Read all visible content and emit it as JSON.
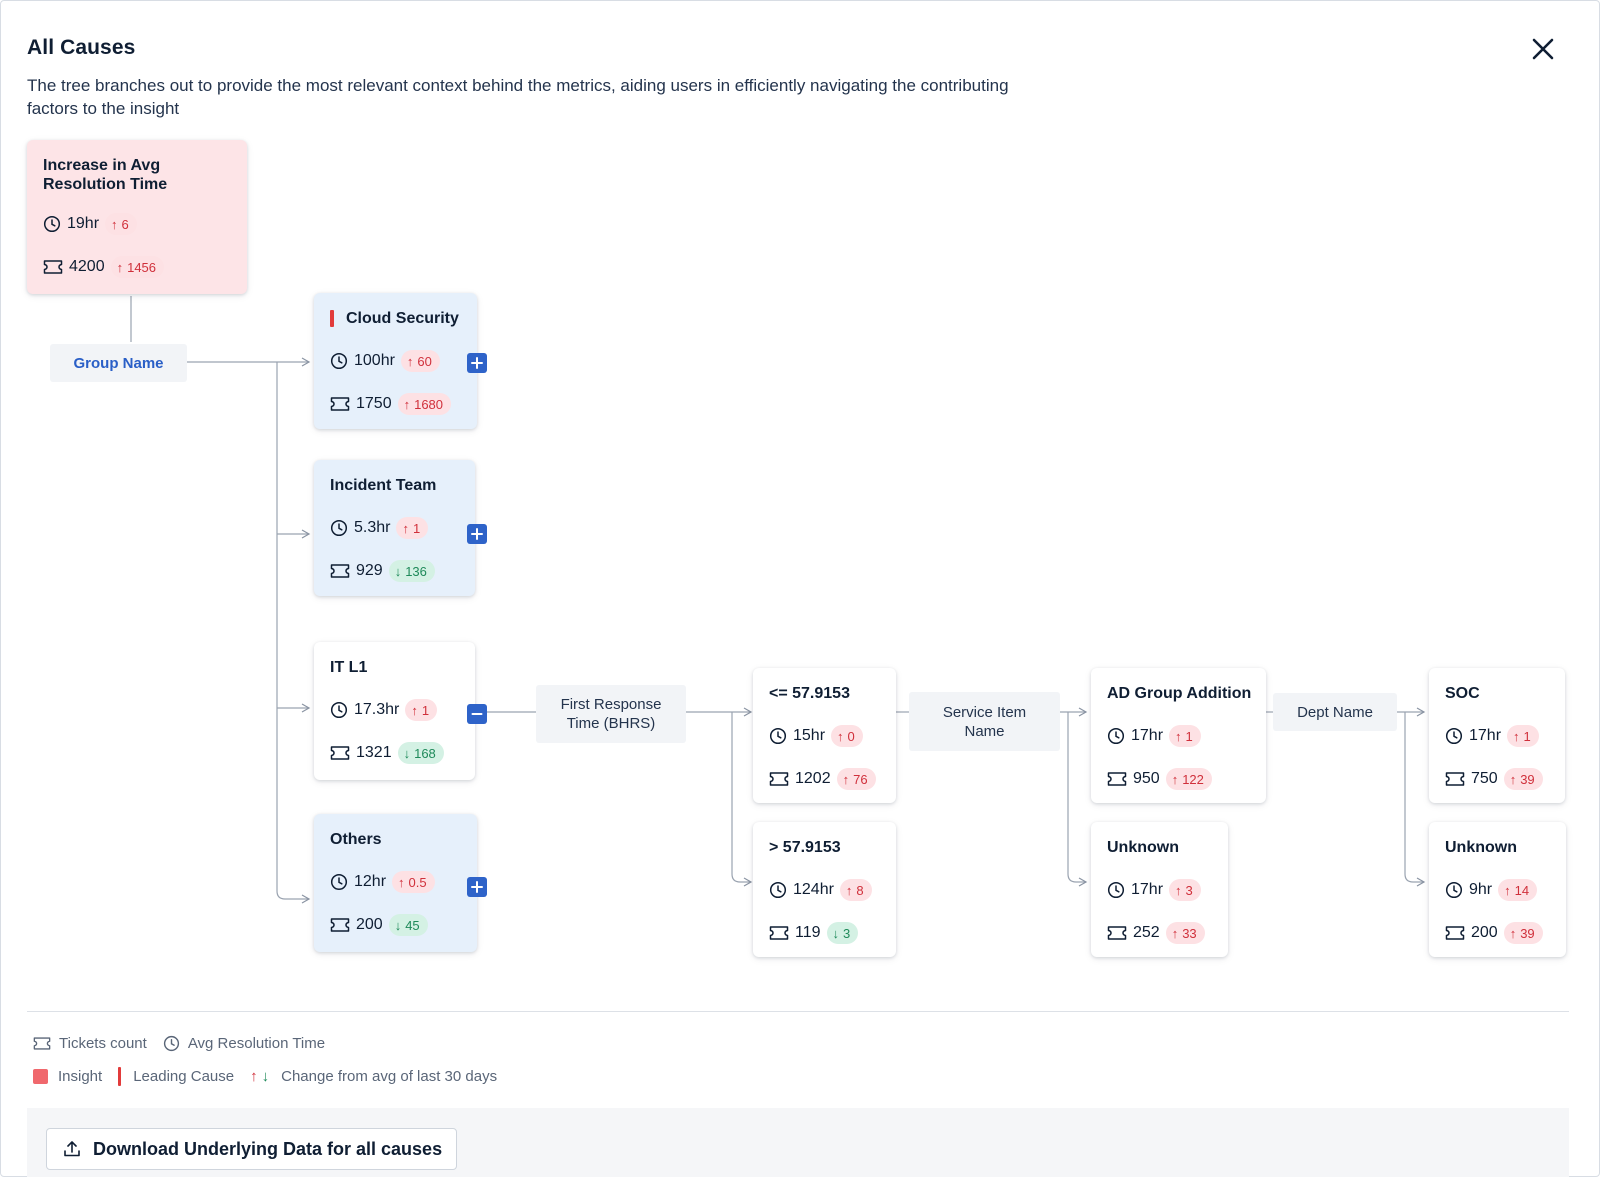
{
  "modal": {
    "title": "All Causes",
    "description": "The tree branches out to provide the most relevant context behind the metrics, aiding users in efficiently navigating the contributing factors to the insight"
  },
  "root": {
    "title": "Increase in Avg Resolution Time",
    "time": "19hr",
    "time_change": "6",
    "time_dir": "up",
    "tickets": "4200",
    "tickets_change": "1456",
    "tickets_dir": "up"
  },
  "levels": {
    "group": "Group Name",
    "first_response": "First Response Time (BHRS)",
    "service_item": "Service Item Name",
    "dept": "Dept Name"
  },
  "groups": [
    {
      "title": "Cloud Security",
      "leading": true,
      "time": "100hr",
      "time_change": "60",
      "time_dir": "up",
      "tickets": "1750",
      "tickets_change": "1680",
      "tickets_dir": "up",
      "toggle": "expand"
    },
    {
      "title": "Incident Team",
      "leading": false,
      "time": "5.3hr",
      "time_change": "1",
      "time_dir": "up",
      "tickets": "929",
      "tickets_change": "136",
      "tickets_dir": "down",
      "toggle": "expand"
    },
    {
      "title": "IT L1",
      "leading": false,
      "time": "17.3hr",
      "time_change": "1",
      "time_dir": "up",
      "tickets": "1321",
      "tickets_change": "168",
      "tickets_dir": "down",
      "toggle": "collapse"
    },
    {
      "title": "Others",
      "leading": false,
      "time": "12hr",
      "time_change": "0.5",
      "time_dir": "up",
      "tickets": "200",
      "tickets_change": "45",
      "tickets_dir": "down",
      "toggle": "expand"
    }
  ],
  "first_response": [
    {
      "title": "<= 57.9153",
      "time": "15hr",
      "time_change": "0",
      "time_dir": "up",
      "tickets": "1202",
      "tickets_change": "76",
      "tickets_dir": "up"
    },
    {
      "title": "> 57.9153",
      "time": "124hr",
      "time_change": "8",
      "time_dir": "up",
      "tickets": "119",
      "tickets_change": "3",
      "tickets_dir": "down"
    }
  ],
  "service_items": [
    {
      "title": "AD Group Addition",
      "time": "17hr",
      "time_change": "1",
      "time_dir": "up",
      "tickets": "950",
      "tickets_change": "122",
      "tickets_dir": "up"
    },
    {
      "title": "Unknown",
      "time": "17hr",
      "time_change": "3",
      "time_dir": "up",
      "tickets": "252",
      "tickets_change": "33",
      "tickets_dir": "up"
    }
  ],
  "depts": [
    {
      "title": "SOC",
      "time": "17hr",
      "time_change": "1",
      "time_dir": "up",
      "tickets": "750",
      "tickets_change": "39",
      "tickets_dir": "up"
    },
    {
      "title": "Unknown",
      "time": "9hr",
      "time_change": "14",
      "time_dir": "up",
      "tickets": "200",
      "tickets_change": "39",
      "tickets_dir": "up"
    }
  ],
  "legend": {
    "tickets_count": "Tickets count",
    "avg_resolution_time": "Avg Resolution Time",
    "insight": "Insight",
    "leading_cause": "Leading Cause",
    "change": "Change from avg of last 30 days"
  },
  "footer": {
    "download_label": "Download Underlying Data for all causes"
  },
  "colors": {
    "insight_bg": "#fde4e7",
    "group_bg": "#e6f0fb",
    "accent_blue": "#2e63c9",
    "up_red": "#d0303b",
    "down_green": "#1f8a5a",
    "leading_red": "#e23b3b"
  },
  "icons": [
    "close-icon",
    "clock-icon",
    "ticket-icon",
    "plus-icon",
    "minus-icon",
    "arrow-up-icon",
    "arrow-down-icon",
    "upload-icon"
  ]
}
